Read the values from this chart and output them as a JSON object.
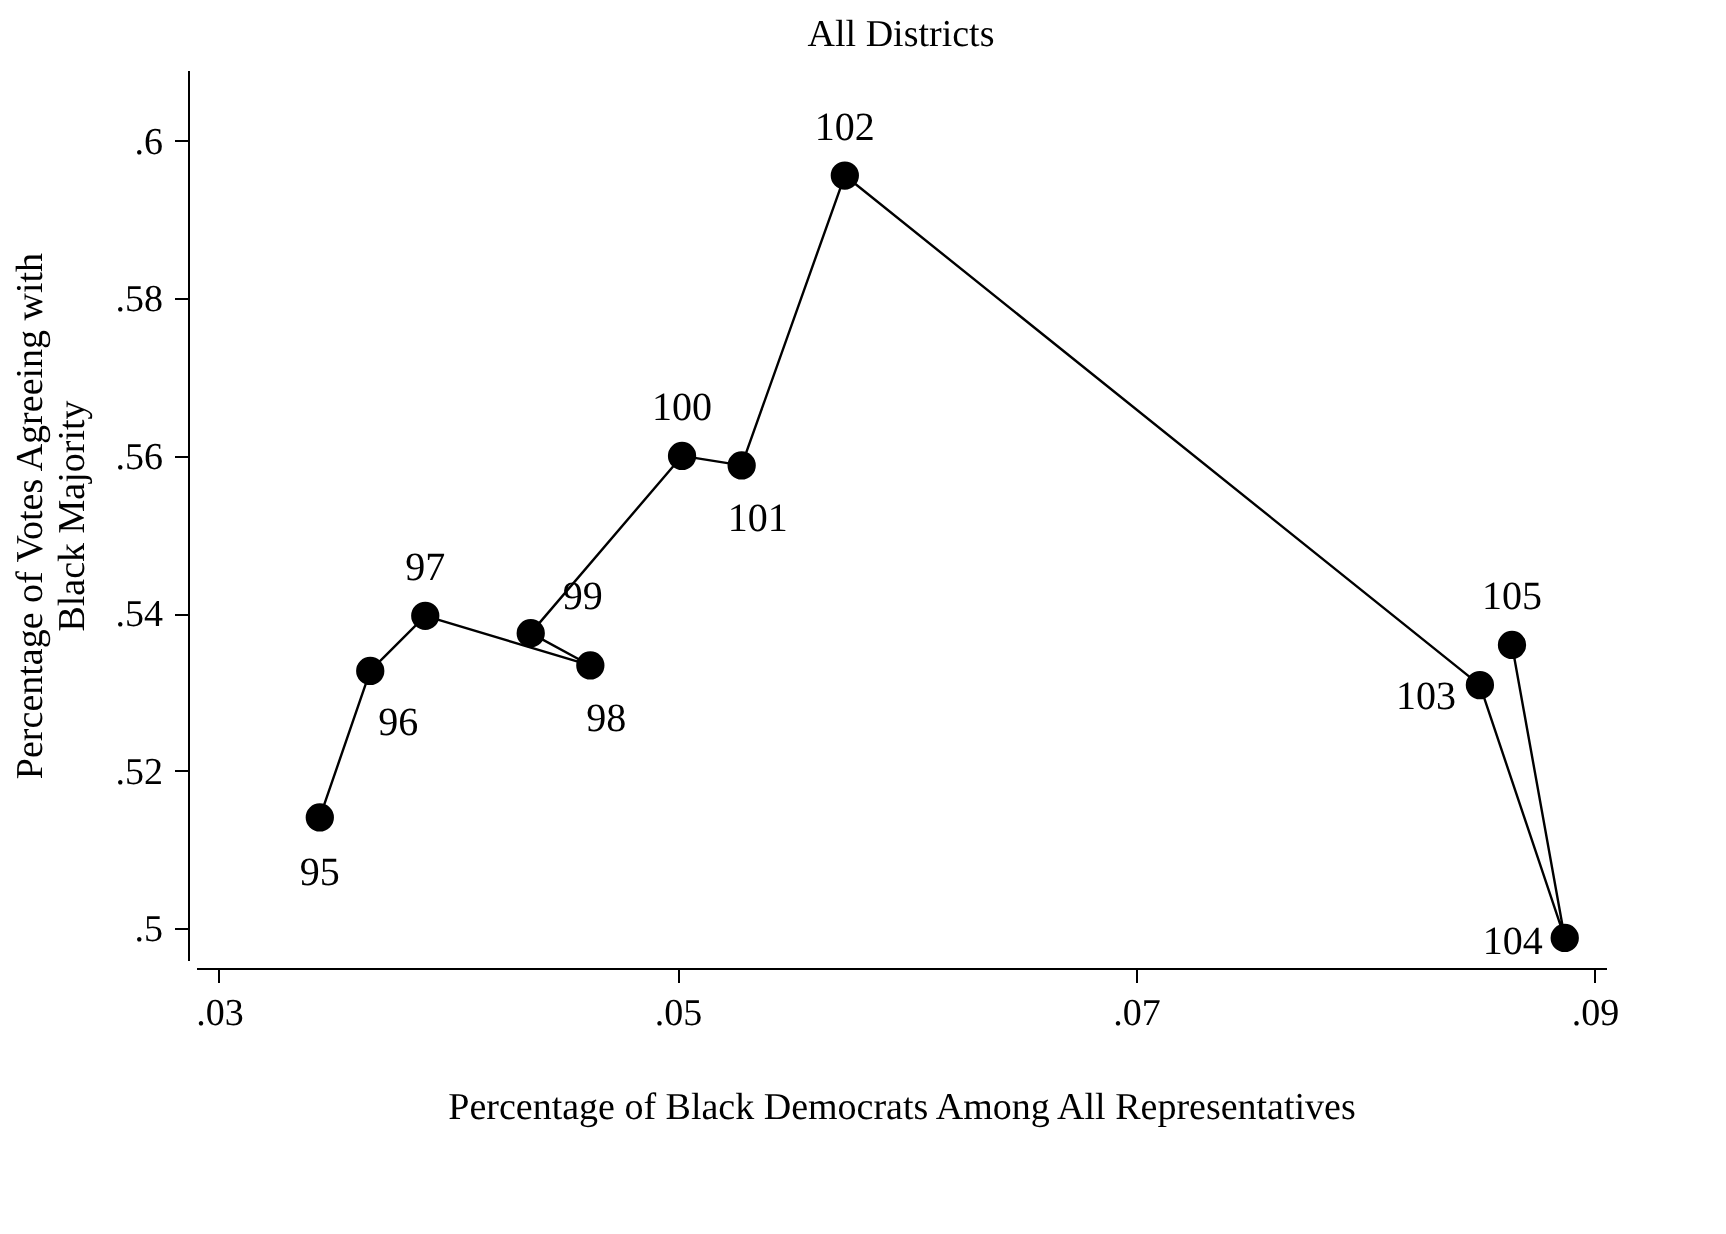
{
  "chart_data": {
    "type": "line",
    "title": "All Districts",
    "xlabel": "Percentage of Black Democrats Among All Representatives",
    "ylabel": "Percentage of Votes Agreeing with Black Majority",
    "x": [
      0.0344,
      0.0366,
      0.039,
      0.0462,
      0.0436,
      0.0502,
      0.0528,
      0.0573,
      0.085,
      0.0887,
      0.0864
    ],
    "series": [
      {
        "color": "#000000",
        "values": [
          0.5141,
          0.5327,
          0.5397,
          0.5334,
          0.5375,
          0.56,
          0.5588,
          0.5956,
          0.5309,
          0.4988,
          0.536
        ]
      }
    ],
    "marker": "circle",
    "grid": false,
    "xlim": [
      0.029,
      0.0905
    ],
    "xticks": [
      {
        "value": 0.03,
        "label": ".03"
      },
      {
        "value": 0.05,
        "label": ".05"
      },
      {
        "value": 0.07,
        "label": ".07"
      },
      {
        "value": 0.09,
        "label": ".09"
      }
    ],
    "ylim": [
      0.496,
      0.609
    ],
    "yticks": [
      {
        "value": 0.5,
        "label": ".5"
      },
      {
        "value": 0.52,
        "label": ".52"
      },
      {
        "value": 0.54,
        "label": ".54"
      },
      {
        "value": 0.56,
        "label": ".56"
      },
      {
        "value": 0.58,
        "label": ".58"
      },
      {
        "value": 0.6,
        "label": ".6"
      }
    ],
    "annotations": [
      {
        "text": "95",
        "x": 0.0344,
        "y": 0.5141
      },
      {
        "text": "96",
        "x": 0.0366,
        "y": 0.5327
      },
      {
        "text": "97",
        "x": 0.039,
        "y": 0.5397
      },
      {
        "text": "98",
        "x": 0.0462,
        "y": 0.5334
      },
      {
        "text": "99",
        "x": 0.0436,
        "y": 0.5375
      },
      {
        "text": "100",
        "x": 0.0502,
        "y": 0.56
      },
      {
        "text": "101",
        "x": 0.0528,
        "y": 0.5588
      },
      {
        "text": "102",
        "x": 0.0573,
        "y": 0.5956
      },
      {
        "text": "103",
        "x": 0.085,
        "y": 0.5309
      },
      {
        "text": "104",
        "x": 0.0887,
        "y": 0.4988
      },
      {
        "text": "105",
        "x": 0.0864,
        "y": 0.536
      }
    ]
  }
}
